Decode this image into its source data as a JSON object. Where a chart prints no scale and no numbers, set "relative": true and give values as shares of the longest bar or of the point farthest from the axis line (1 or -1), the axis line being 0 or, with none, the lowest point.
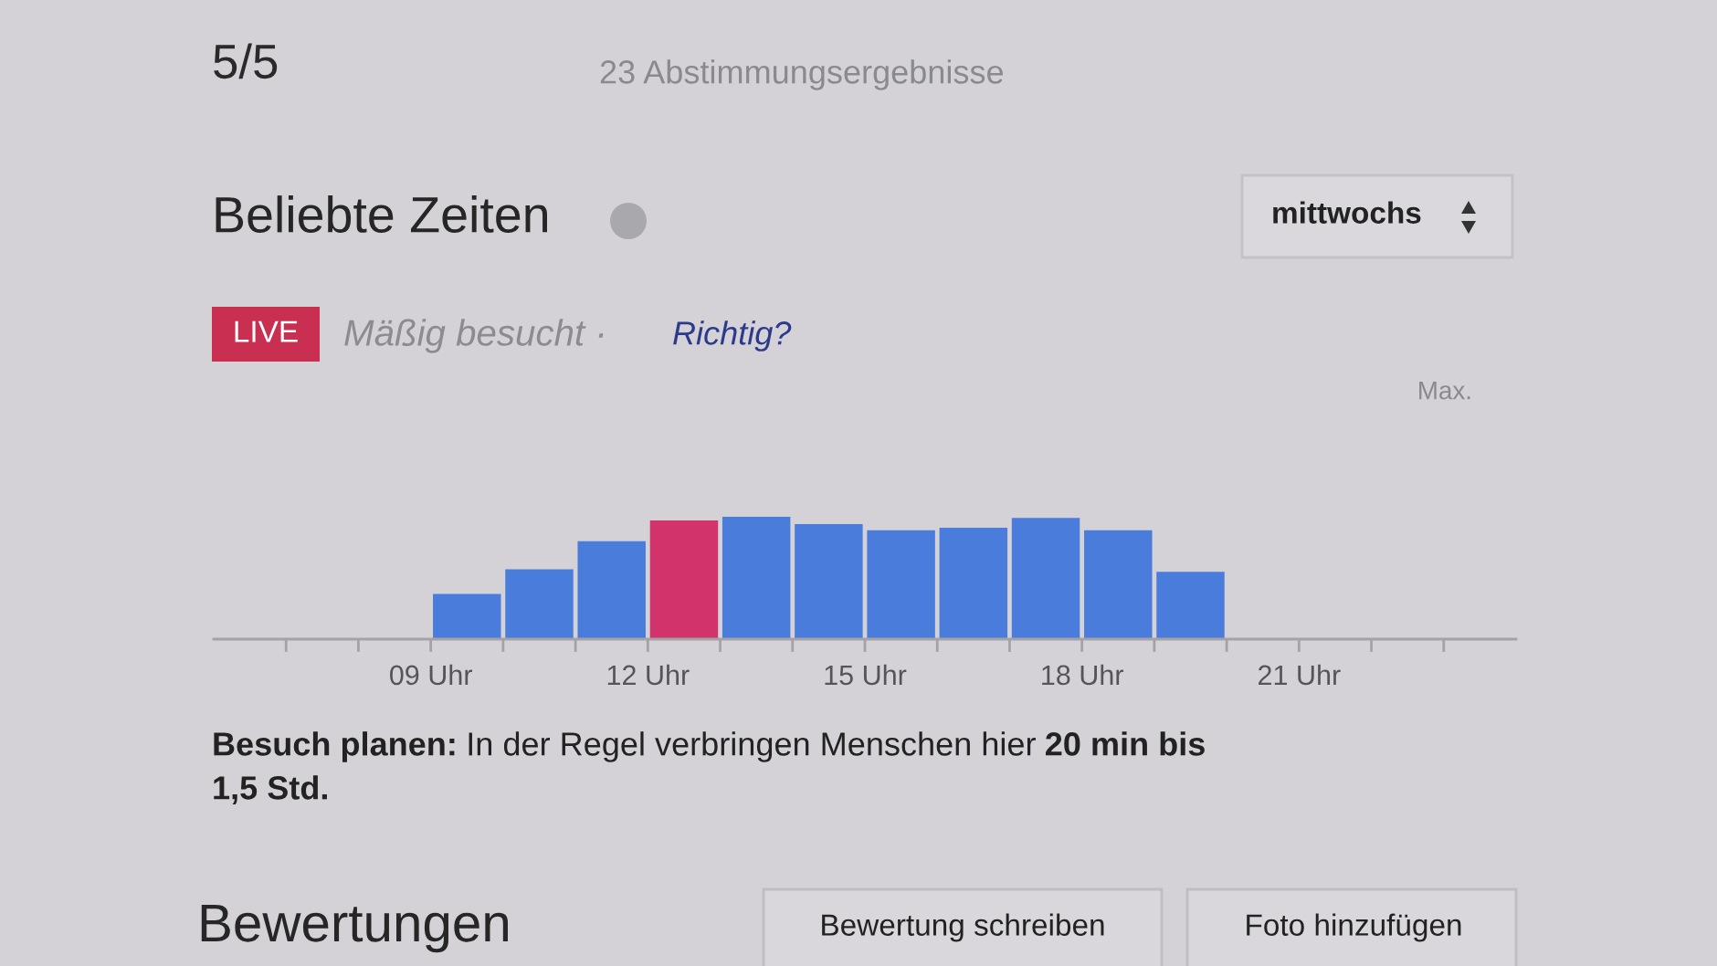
{
  "chart_data": {
    "type": "bar",
    "title": "Beliebte Zeiten",
    "x": [
      9.5,
      10.5,
      11.5,
      12.5,
      13.5,
      14.5,
      15.5,
      16.5,
      17.5,
      18.5,
      19.5
    ],
    "values": [
      0.37,
      0.57,
      0.8,
      0.97,
      1.0,
      0.94,
      0.89,
      0.91,
      0.99,
      0.89,
      0.55
    ],
    "colors": [
      "#4a7ddb",
      "#4a7ddb",
      "#4a7ddb",
      "#d2336b",
      "#4a7ddb",
      "#4a7ddb",
      "#4a7ddb",
      "#4a7ddb",
      "#4a7ddb",
      "#4a7ddb",
      "#4a7ddb"
    ],
    "relative": true,
    "xlim": [
      6,
      24
    ],
    "xticks": [
      {
        "value": 7,
        "label": null
      },
      {
        "value": 8,
        "label": null
      },
      {
        "value": 9,
        "label": "09 Uhr"
      },
      {
        "value": 10,
        "label": null
      },
      {
        "value": 11,
        "label": null
      },
      {
        "value": 12,
        "label": "12 Uhr"
      },
      {
        "value": 13,
        "label": null
      },
      {
        "value": 14,
        "label": null
      },
      {
        "value": 15,
        "label": "15 Uhr"
      },
      {
        "value": 16,
        "label": null
      },
      {
        "value": 17,
        "label": null
      },
      {
        "value": 18,
        "label": "18 Uhr"
      },
      {
        "value": 19,
        "label": null
      },
      {
        "value": 20,
        "label": null
      },
      {
        "value": 21,
        "label": "21 Uhr"
      },
      {
        "value": 22,
        "label": null
      },
      {
        "value": 23,
        "label": null
      }
    ],
    "annotations": [
      "5/5",
      "23 Abstimmungsergebnisse",
      "mittwochs",
      "LIVE",
      "Mäßig besucht ·",
      "Richtig?",
      "Max.",
      "Besuch planen:",
      "In der Regel verbringen Menschen hier",
      "20 min bis",
      "1,5 Std.",
      "Bewertungen",
      "Bewertung schreiben",
      "Foto hinzufügen"
    ]
  }
}
